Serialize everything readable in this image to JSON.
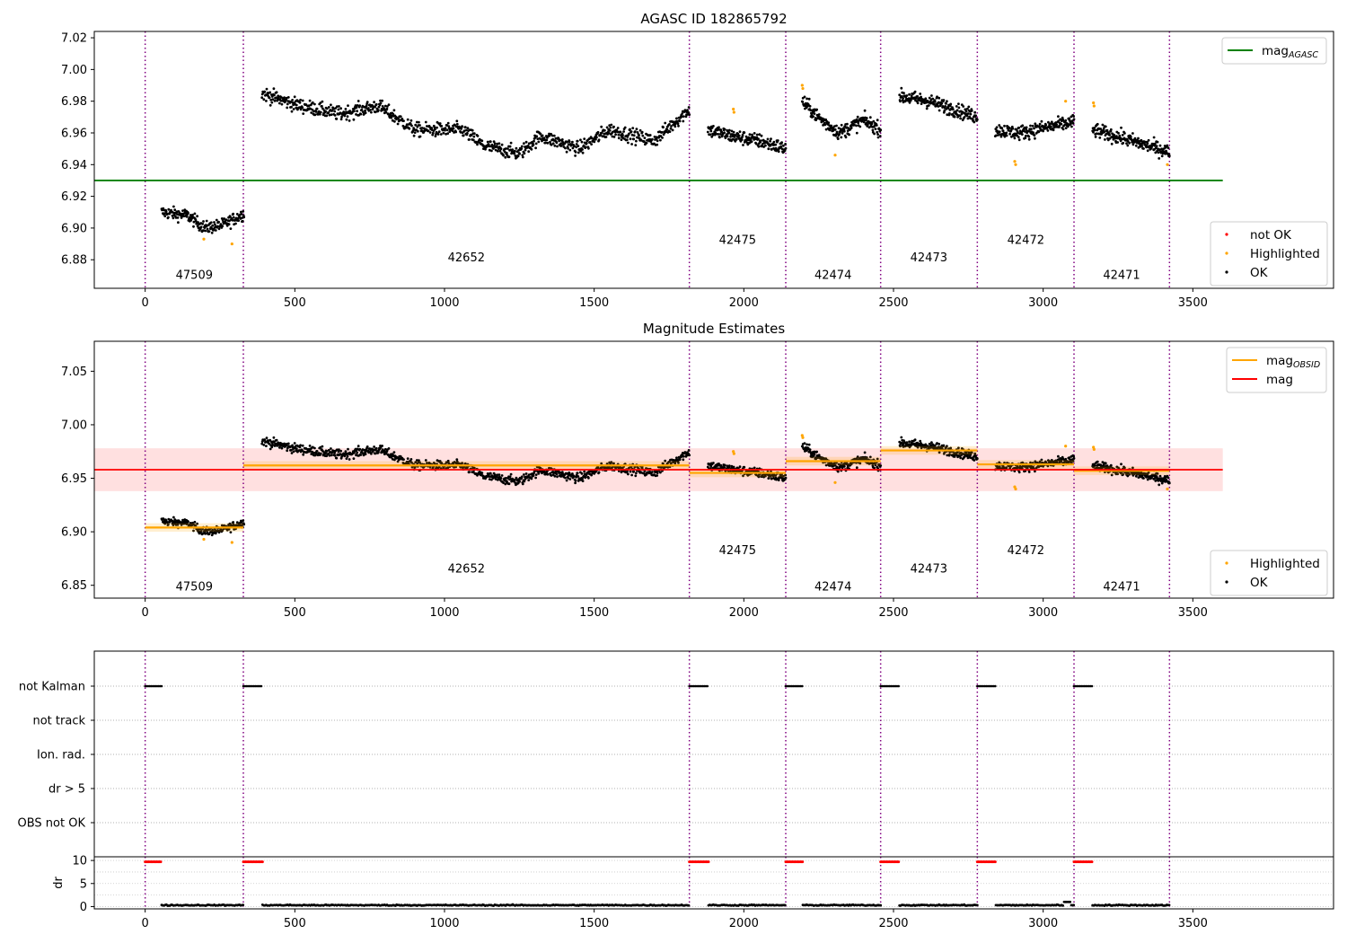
{
  "chart_data": [
    {
      "type": "scatter",
      "title": "AGASC ID 182865792",
      "xlim": [
        -170,
        3970
      ],
      "ylim": [
        6.862,
        7.024
      ],
      "xticks": [
        0,
        500,
        1000,
        1500,
        2000,
        2500,
        3000,
        3500
      ],
      "yticks": [
        6.88,
        6.9,
        6.92,
        6.94,
        6.96,
        6.98,
        7.0,
        7.02
      ],
      "ytick_labels": [
        "6.88",
        "6.90",
        "6.92",
        "6.94",
        "6.96",
        "6.98",
        "7.00",
        "7.02"
      ],
      "observation_boundaries": [
        0,
        328,
        1818,
        2140,
        2457,
        2780,
        3103,
        3422
      ],
      "observations": [
        {
          "obsid": "47509",
          "x": 164,
          "y": 6.868
        },
        {
          "obsid": "42652",
          "x": 1073,
          "y": 6.879
        },
        {
          "obsid": "42475",
          "x": 1979,
          "y": 6.89
        },
        {
          "obsid": "42474",
          "x": 2298,
          "y": 6.868
        },
        {
          "obsid": "42473",
          "x": 2618,
          "y": 6.879
        },
        {
          "obsid": "42472",
          "x": 2942,
          "y": 6.89
        },
        {
          "obsid": "42471",
          "x": 3262,
          "y": 6.868
        }
      ],
      "mag_agasc": {
        "value": 6.93,
        "x_range": [
          -170,
          3600
        ],
        "color": "#008000"
      },
      "segments": [
        {
          "x": [
            55,
            330
          ],
          "trend": [
            [
              55,
              6.91
            ],
            [
              140,
              6.908
            ],
            [
              200,
              6.9
            ],
            [
              260,
              6.902
            ],
            [
              330,
              6.909
            ]
          ],
          "noise": 0.004,
          "n": 200
        },
        {
          "x": [
            390,
            1818
          ],
          "trend": [
            [
              390,
              6.985
            ],
            [
              500,
              6.978
            ],
            [
              650,
              6.972
            ],
            [
              780,
              6.977
            ],
            [
              900,
              6.962
            ],
            [
              1060,
              6.962
            ],
            [
              1130,
              6.952
            ],
            [
              1250,
              6.947
            ],
            [
              1320,
              6.958
            ],
            [
              1450,
              6.95
            ],
            [
              1550,
              6.962
            ],
            [
              1700,
              6.955
            ],
            [
              1818,
              6.975
            ]
          ],
          "noise": 0.0045,
          "n": 900
        },
        {
          "x": [
            1880,
            2140
          ],
          "trend": [
            [
              1880,
              6.962
            ],
            [
              1960,
              6.958
            ],
            [
              2050,
              6.955
            ],
            [
              2140,
              6.95
            ]
          ],
          "noise": 0.0045,
          "n": 200
        },
        {
          "x": [
            2195,
            2457
          ],
          "trend": [
            [
              2195,
              6.98
            ],
            [
              2260,
              6.968
            ],
            [
              2320,
              6.96
            ],
            [
              2400,
              6.968
            ],
            [
              2457,
              6.962
            ]
          ],
          "noise": 0.0045,
          "n": 200
        },
        {
          "x": [
            2520,
            2780
          ],
          "trend": [
            [
              2520,
              6.983
            ],
            [
              2620,
              6.98
            ],
            [
              2700,
              6.975
            ],
            [
              2780,
              6.97
            ]
          ],
          "noise": 0.0045,
          "n": 200
        },
        {
          "x": [
            2840,
            3103
          ],
          "trend": [
            [
              2840,
              6.962
            ],
            [
              2920,
              6.96
            ],
            [
              3000,
              6.963
            ],
            [
              3103,
              6.967
            ]
          ],
          "noise": 0.0045,
          "n": 200
        },
        {
          "x": [
            3165,
            3422
          ],
          "trend": [
            [
              3165,
              6.962
            ],
            [
              3260,
              6.957
            ],
            [
              3350,
              6.952
            ],
            [
              3422,
              6.948
            ]
          ],
          "noise": 0.0045,
          "n": 200
        }
      ],
      "highlighted_points": [
        [
          196,
          6.893
        ],
        [
          290,
          6.89
        ],
        [
          1965,
          6.975
        ],
        [
          1967,
          6.973
        ],
        [
          2195,
          6.99
        ],
        [
          2197,
          6.988
        ],
        [
          2305,
          6.946
        ],
        [
          2905,
          6.942
        ],
        [
          2908,
          6.94
        ],
        [
          3075,
          6.98
        ],
        [
          3168,
          6.979
        ],
        [
          3170,
          6.977
        ],
        [
          3415,
          6.94
        ]
      ],
      "legend_top": [
        {
          "label": "mag",
          "sub": "AGASC",
          "color": "#008000",
          "marker": "line"
        }
      ],
      "legend_bottom": [
        {
          "label": "not OK",
          "color": "#ff0000",
          "marker": "dot"
        },
        {
          "label": "Highlighted",
          "color": "#ffa500",
          "marker": "dot"
        },
        {
          "label": "OK",
          "color": "#000000",
          "marker": "dot"
        }
      ]
    },
    {
      "type": "scatter",
      "title": "Magnitude Estimates",
      "xlim": [
        -170,
        3970
      ],
      "ylim": [
        6.838,
        7.078
      ],
      "xticks": [
        0,
        500,
        1000,
        1500,
        2000,
        2500,
        3000,
        3500
      ],
      "yticks": [
        6.85,
        6.9,
        6.95,
        7.0,
        7.05
      ],
      "ytick_labels": [
        "6.85",
        "6.90",
        "6.95",
        "7.00",
        "7.05"
      ],
      "observation_boundaries": [
        0,
        328,
        1818,
        2140,
        2457,
        2780,
        3103,
        3422
      ],
      "observations": [
        {
          "obsid": "47509",
          "x": 164,
          "y": 6.845
        },
        {
          "obsid": "42652",
          "x": 1073,
          "y": 6.862
        },
        {
          "obsid": "42475",
          "x": 1979,
          "y": 6.879
        },
        {
          "obsid": "42474",
          "x": 2298,
          "y": 6.845
        },
        {
          "obsid": "42473",
          "x": 2618,
          "y": 6.862
        },
        {
          "obsid": "42472",
          "x": 2942,
          "y": 6.879
        },
        {
          "obsid": "42471",
          "x": 3262,
          "y": 6.845
        }
      ],
      "mag": {
        "value": 6.958,
        "band": [
          6.938,
          6.978
        ],
        "x_range": [
          -170,
          3600
        ],
        "color": "#ff0000"
      },
      "mag_obsid": [
        {
          "x": [
            0,
            328
          ],
          "value": 6.904
        },
        {
          "x": [
            328,
            1818
          ],
          "value": 6.962
        },
        {
          "x": [
            1818,
            2140
          ],
          "value": 6.955
        },
        {
          "x": [
            2140,
            2457
          ],
          "value": 6.966
        },
        {
          "x": [
            2457,
            2780
          ],
          "value": 6.976
        },
        {
          "x": [
            2780,
            3103
          ],
          "value": 6.963
        },
        {
          "x": [
            3103,
            3422
          ],
          "value": 6.957
        }
      ],
      "highlighted_points": [
        [
          196,
          6.893
        ],
        [
          290,
          6.89
        ],
        [
          1965,
          6.975
        ],
        [
          1967,
          6.973
        ],
        [
          2195,
          6.99
        ],
        [
          2197,
          6.988
        ],
        [
          2305,
          6.946
        ],
        [
          2905,
          6.942
        ],
        [
          2908,
          6.94
        ],
        [
          3075,
          6.98
        ],
        [
          3168,
          6.979
        ],
        [
          3170,
          6.977
        ],
        [
          3415,
          6.94
        ]
      ],
      "legend_top": [
        {
          "label": "mag",
          "sub": "OBSID",
          "color": "#ffa500",
          "marker": "line"
        },
        {
          "label": "mag",
          "sub": "",
          "color": "#ff0000",
          "marker": "line"
        }
      ],
      "legend_bottom": [
        {
          "label": "Highlighted",
          "color": "#ffa500",
          "marker": "dot"
        },
        {
          "label": "OK",
          "color": "#000000",
          "marker": "dot"
        }
      ]
    },
    {
      "type": "scatter",
      "title": "",
      "xlim": [
        -170,
        3970
      ],
      "categories": [
        "not Kalman",
        "not track",
        "Ion. rad.",
        "dr > 5",
        "OBS not OK"
      ],
      "flag_segments": [
        {
          "category": "not Kalman",
          "x_ranges": [
            [
              0,
              55
            ],
            [
              328,
              392
            ],
            [
              1818,
              1882
            ],
            [
              2140,
              2197
            ],
            [
              2457,
              2520
            ],
            [
              2780,
              2842
            ],
            [
              3103,
              3165
            ]
          ]
        }
      ]
    },
    {
      "type": "scatter",
      "title": "",
      "ylabel": "dr",
      "xlim": [
        -170,
        3970
      ],
      "ylim": [
        -0.5,
        10.8
      ],
      "xticks": [
        0,
        500,
        1000,
        1500,
        2000,
        2500,
        3000,
        3500
      ],
      "yticks": [
        0,
        5,
        10
      ],
      "ytick_labels": [
        "0",
        "5",
        "10"
      ],
      "high_dr": {
        "value": 9.7,
        "x_ranges": [
          [
            0,
            55
          ],
          [
            328,
            392
          ],
          [
            1818,
            1882
          ],
          [
            2140,
            2197
          ],
          [
            2457,
            2520
          ],
          [
            2780,
            2842
          ],
          [
            3103,
            3165
          ]
        ]
      },
      "low_dr": {
        "value": 0.3,
        "x_ranges": [
          [
            55,
            328
          ],
          [
            392,
            1818
          ],
          [
            1882,
            2140
          ],
          [
            2197,
            2457
          ],
          [
            2520,
            2780
          ],
          [
            2842,
            3103
          ],
          [
            3165,
            3422
          ]
        ],
        "bump": {
          "x": 3080,
          "value": 1.0
        }
      }
    }
  ]
}
